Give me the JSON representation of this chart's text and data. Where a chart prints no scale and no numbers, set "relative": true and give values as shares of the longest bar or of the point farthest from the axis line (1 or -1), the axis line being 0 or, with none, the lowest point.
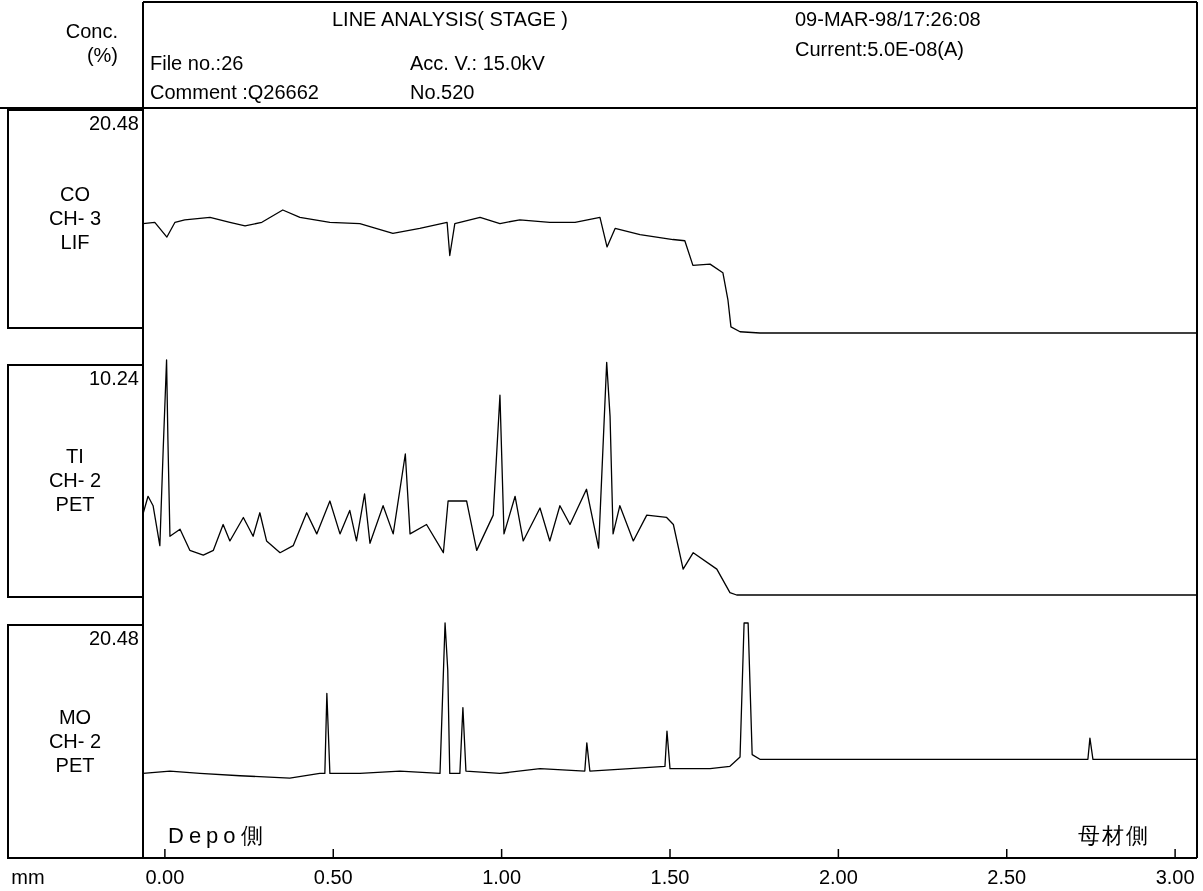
{
  "chart_data": [
    {
      "type": "line",
      "title": "LINE ANALYSIS( STAGE )",
      "ylabel": "CO\nCH- 3\nLIF",
      "relative": true,
      "xlim": [
        -0.065,
        3.065
      ],
      "tick_labels": false,
      "annotations": [
        "Conc.\n(%)",
        "File no.:26",
        "Comment :Q26662",
        "Acc. V.: 15.0kV",
        "No.520",
        "09-MAR-98/17:26:08",
        "Current:5.0E-08(A)",
        "20.48"
      ],
      "series": [
        {
          "color": "#000000",
          "x": [
            -0.065,
            -0.03,
            0.006,
            0.03,
            0.059,
            0.134,
            0.193,
            0.238,
            0.288,
            0.35,
            0.401,
            0.49,
            0.579,
            0.677,
            0.757,
            0.838,
            0.846,
            0.861,
            0.936,
            0.995,
            1.054,
            1.143,
            1.218,
            1.292,
            1.313,
            1.337,
            1.411,
            1.509,
            1.544,
            1.568,
            1.619,
            1.657,
            1.672,
            1.681,
            1.708,
            1.767,
            3.065
          ],
          "values": [
            0.89,
            0.9,
            0.78,
            0.9,
            0.92,
            0.94,
            0.9,
            0.87,
            0.9,
            1.0,
            0.94,
            0.9,
            0.89,
            0.81,
            0.85,
            0.9,
            0.63,
            0.89,
            0.94,
            0.89,
            0.92,
            0.9,
            0.9,
            0.94,
            0.7,
            0.85,
            0.8,
            0.76,
            0.75,
            0.55,
            0.56,
            0.49,
            0.27,
            0.05,
            0.01,
            0,
            0
          ]
        }
      ]
    },
    {
      "type": "line",
      "ylabel": "TI\nCH- 2\nPET",
      "relative": true,
      "xlim": [
        -0.065,
        3.065
      ],
      "tick_labels": false,
      "annotations": [
        "10.24"
      ],
      "series": [
        {
          "color": "#000000",
          "x": [
            -0.064,
            -0.05,
            -0.035,
            -0.015,
            -0.005,
            0.005,
            0.009,
            0.015,
            0.045,
            0.074,
            0.114,
            0.144,
            0.173,
            0.193,
            0.233,
            0.262,
            0.282,
            0.302,
            0.342,
            0.381,
            0.421,
            0.451,
            0.49,
            0.52,
            0.549,
            0.569,
            0.593,
            0.609,
            0.648,
            0.678,
            0.714,
            0.728,
            0.777,
            0.827,
            0.841,
            0.896,
            0.926,
            0.975,
            0.995,
            1.007,
            1.04,
            1.064,
            1.114,
            1.143,
            1.173,
            1.203,
            1.252,
            1.288,
            1.312,
            1.322,
            1.331,
            1.351,
            1.391,
            1.431,
            1.49,
            1.51,
            1.539,
            1.569,
            1.639,
            1.678,
            1.698,
            3.065
          ],
          "values": [
            0.35,
            0.42,
            0.38,
            0.21,
            0.62,
            1.0,
            0.66,
            0.25,
            0.28,
            0.19,
            0.17,
            0.19,
            0.3,
            0.23,
            0.33,
            0.25,
            0.35,
            0.23,
            0.18,
            0.21,
            0.35,
            0.26,
            0.4,
            0.26,
            0.36,
            0.23,
            0.43,
            0.22,
            0.38,
            0.26,
            0.6,
            0.26,
            0.3,
            0.18,
            0.4,
            0.4,
            0.19,
            0.34,
            0.85,
            0.26,
            0.42,
            0.23,
            0.37,
            0.23,
            0.38,
            0.3,
            0.45,
            0.2,
            0.99,
            0.76,
            0.26,
            0.38,
            0.23,
            0.34,
            0.33,
            0.3,
            0.11,
            0.18,
            0.11,
            0.01,
            0,
            0
          ]
        }
      ]
    },
    {
      "type": "line",
      "ylabel": "MO\nCH- 2\nPET",
      "xlabel": "mm",
      "relative": true,
      "xlim": [
        -0.065,
        3.065
      ],
      "tick_labels": "x",
      "xticks": [
        {
          "value": 0,
          "label": "0.00"
        },
        {
          "value": 0.5,
          "label": "0.50"
        },
        {
          "value": 1,
          "label": "1.00"
        },
        {
          "value": 1.5,
          "label": "1.50"
        },
        {
          "value": 2,
          "label": "2.00"
        },
        {
          "value": 2.5,
          "label": "2.50"
        },
        {
          "value": 3,
          "label": "3.00"
        }
      ],
      "annotations": [
        "20.48",
        "Depo側",
        "母材側"
      ],
      "series": [
        {
          "color": "#000000",
          "x": [
            -0.065,
            0.015,
            0.104,
            0.223,
            0.371,
            0.46,
            0.475,
            0.481,
            0.49,
            0.579,
            0.698,
            0.817,
            0.832,
            0.84,
            0.846,
            0.876,
            0.885,
            0.894,
            0.995,
            1.114,
            1.247,
            1.253,
            1.262,
            1.381,
            1.485,
            1.491,
            1.5,
            1.619,
            1.678,
            1.708,
            1.72,
            1.732,
            1.744,
            1.767,
            1.886,
            2.034,
            2.183,
            2.331,
            2.48,
            2.599,
            2.741,
            2.747,
            2.756,
            2.896,
            3.065
          ],
          "values": [
            0.36,
            0.37,
            0.36,
            0.35,
            0.34,
            0.36,
            0.36,
            0.7,
            0.36,
            0.36,
            0.37,
            0.36,
            1.0,
            0.8,
            0.36,
            0.36,
            0.64,
            0.37,
            0.36,
            0.38,
            0.37,
            0.49,
            0.37,
            0.38,
            0.39,
            0.54,
            0.38,
            0.38,
            0.39,
            0.43,
            1.0,
            1.0,
            0.44,
            0.42,
            0.42,
            0.42,
            0.42,
            0.42,
            0.42,
            0.42,
            0.42,
            0.51,
            0.42,
            0.42,
            0.42
          ]
        }
      ]
    }
  ]
}
